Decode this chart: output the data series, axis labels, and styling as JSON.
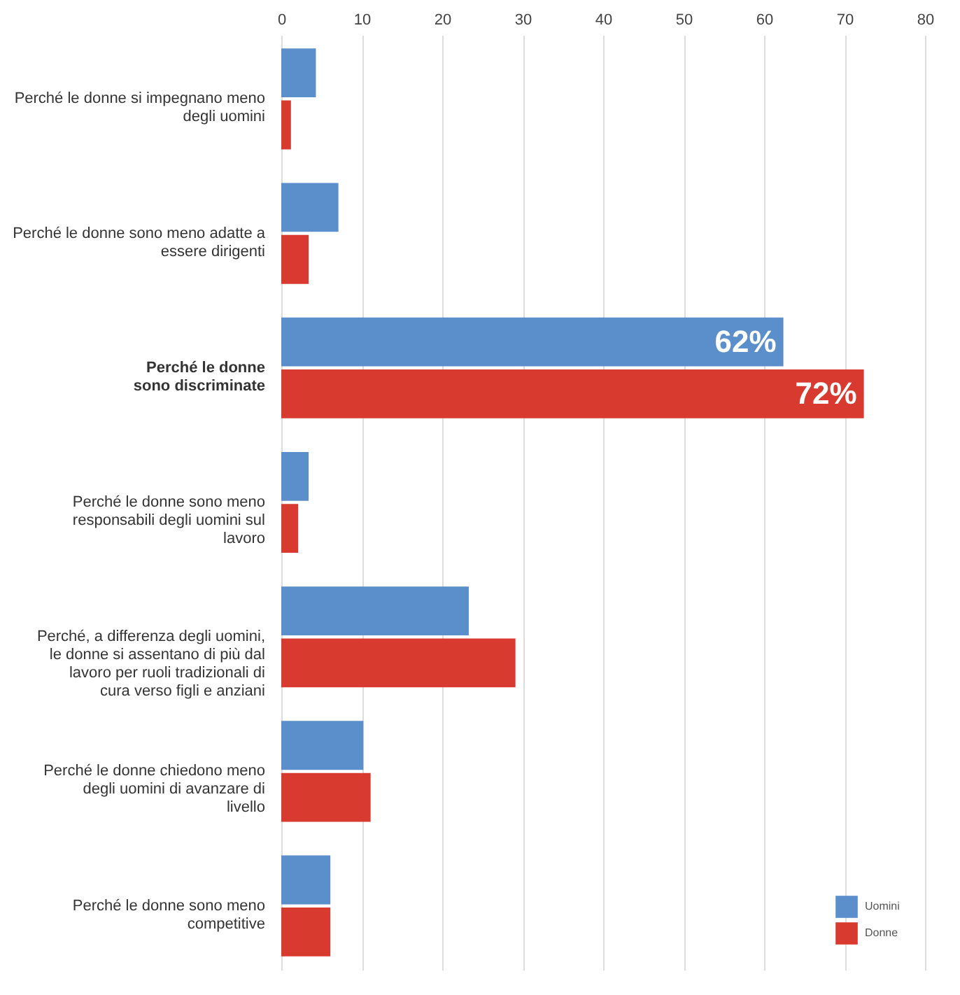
{
  "chart_data": {
    "type": "bar",
    "orientation": "horizontal",
    "categories": [
      "Perché le donne si impegnano meno degli uomini",
      "Perché le donne sono meno adatte a essere dirigenti",
      "Perché le donne sono discriminate",
      "Perché le donne sono meno responsabili degli uomini sul lavoro",
      "Perché, a differenza degli uomini, le donne si assentano di più dal lavoro per ruoli tradizionali di cura verso figli e anziani",
      "Perché le donne chiedono meno degli uomini di avanzare di livello",
      "Perché le donne sono meno competitive"
    ],
    "series": [
      {
        "name": "Uomini",
        "color": "#5b8fcb",
        "values": [
          4.3,
          7.1,
          62.4,
          3.4,
          23.3,
          10.2,
          6.1
        ],
        "value_labels": [
          null,
          null,
          "62%",
          null,
          null,
          null,
          null
        ]
      },
      {
        "name": "Donne",
        "color": "#d93a30",
        "values": [
          1.2,
          3.4,
          72.4,
          2.1,
          29.1,
          11.1,
          6.1
        ],
        "value_labels": [
          null,
          null,
          "72%",
          null,
          null,
          null,
          null
        ]
      }
    ],
    "xlim": [
      0,
      80
    ],
    "xticks": [
      0,
      10,
      20,
      30,
      40,
      50,
      60,
      70,
      80
    ],
    "grid": "x",
    "legend": "bottom right"
  }
}
